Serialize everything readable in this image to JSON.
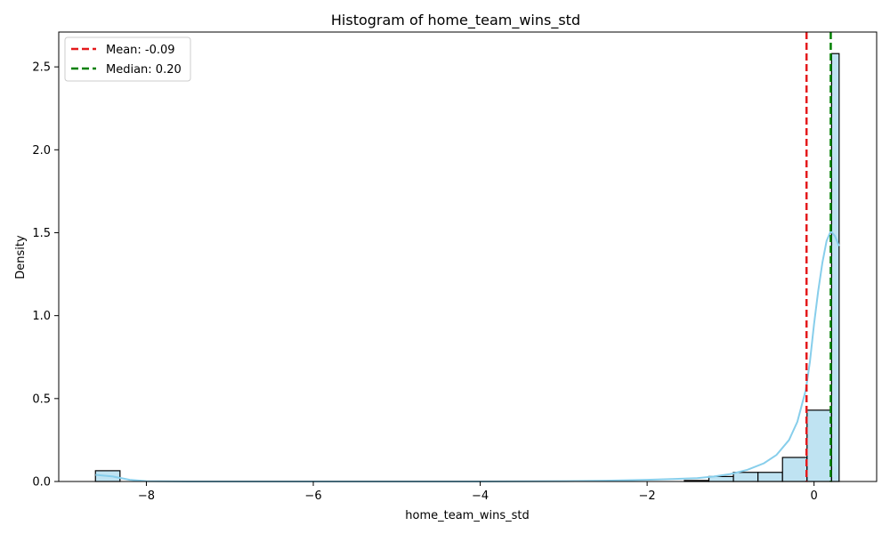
{
  "chart_data": {
    "type": "histogram",
    "title": "Histogram of home_team_wins_std",
    "xlabel": "home_team_wins_std",
    "ylabel": "Density",
    "xlim": [
      -9.05,
      0.75
    ],
    "ylim": [
      0,
      2.71
    ],
    "xticks": [
      -8,
      -6,
      -4,
      -2,
      0
    ],
    "yticks": [
      0.0,
      0.5,
      1.0,
      1.5,
      2.0,
      2.5
    ],
    "xtick_labels": [
      "−8",
      "−6",
      "−4",
      "−2",
      "0"
    ],
    "ytick_labels": [
      "0.0",
      "0.5",
      "1.0",
      "1.5",
      "2.0",
      "2.5"
    ],
    "bin_edges": [
      -8.61,
      -8.316,
      -8.022,
      -7.728,
      -7.434,
      -7.14,
      -6.846,
      -6.552,
      -6.258,
      -5.964,
      -5.67,
      -5.376,
      -5.082,
      -4.788,
      -4.494,
      -4.2,
      -3.906,
      -3.612,
      -3.318,
      -3.024,
      -2.73,
      -2.436,
      -2.142,
      -1.848,
      -1.554,
      -1.26,
      -0.966,
      -0.672,
      -0.378,
      -0.084,
      0.21,
      0.3
    ],
    "densities": [
      0.065,
      0,
      0,
      0,
      0,
      0,
      0,
      0,
      0,
      0,
      0,
      0,
      0,
      0,
      0,
      0,
      0,
      0,
      0,
      0,
      0,
      0,
      0,
      0,
      0.006,
      0.03,
      0.055,
      0.055,
      0.145,
      0.43,
      2.58
    ],
    "bar_color": "#bfe3f2",
    "bar_edge_color": "#000000",
    "kde": {
      "color": "#87ceeb",
      "x": [
        -8.61,
        -8.4,
        -8.2,
        -8.0,
        -7.5,
        -6,
        -4,
        -3,
        -2.5,
        -2.0,
        -1.7,
        -1.4,
        -1.2,
        -1.0,
        -0.8,
        -0.6,
        -0.45,
        -0.3,
        -0.2,
        -0.1,
        -0.05,
        0.0,
        0.05,
        0.1,
        0.15,
        0.2,
        0.25,
        0.3
      ],
      "y": [
        0.04,
        0.03,
        0.01,
        0.002,
        0.0,
        0.0,
        0.0,
        0.002,
        0.005,
        0.01,
        0.015,
        0.02,
        0.03,
        0.045,
        0.07,
        0.11,
        0.16,
        0.25,
        0.36,
        0.55,
        0.72,
        0.95,
        1.15,
        1.32,
        1.45,
        1.51,
        1.48,
        1.42
      ]
    },
    "lines": [
      {
        "label": "Mean: -0.09",
        "x": -0.09,
        "color": "#e41a1c"
      },
      {
        "label": "Median: 0.20",
        "x": 0.2,
        "color": "#008000"
      }
    ],
    "legend_position": "upper-left",
    "grid": false
  }
}
